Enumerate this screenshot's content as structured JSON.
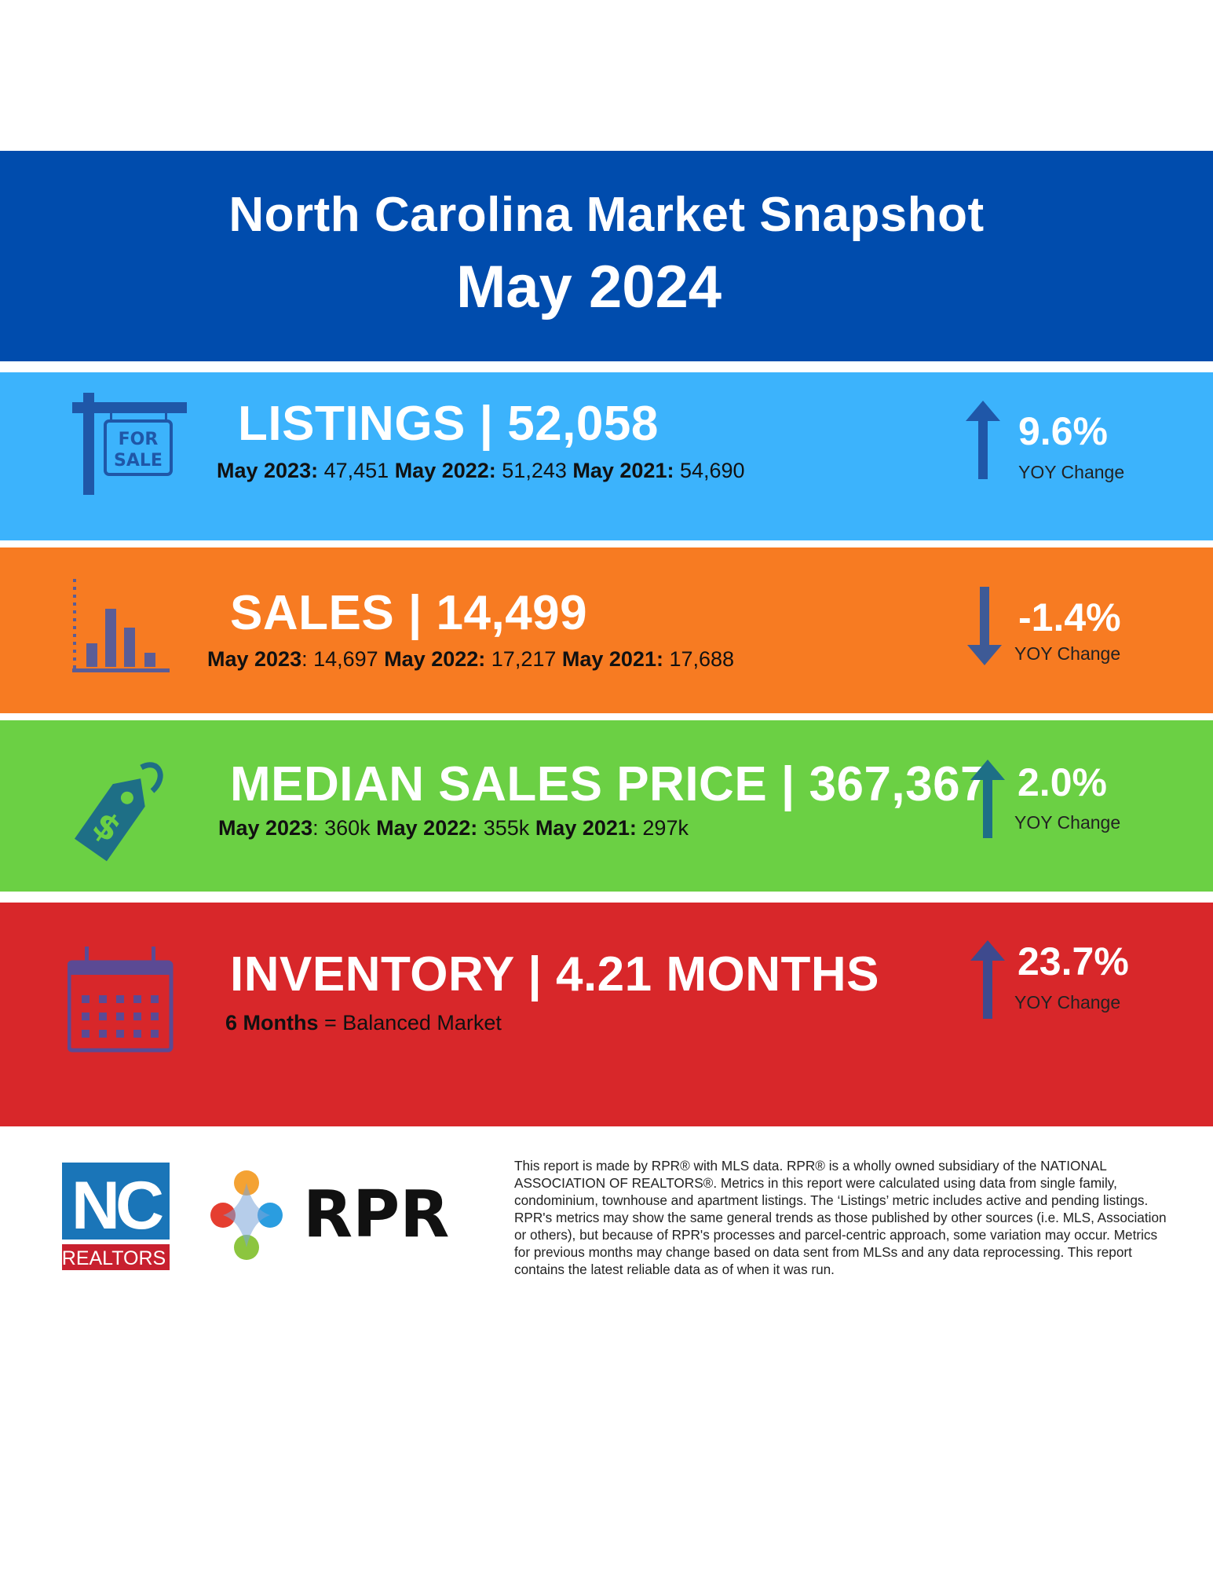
{
  "header": {
    "title": "North Carolina Market Snapshot",
    "subtitle": "May 2024"
  },
  "colors": {
    "header": "#004cad",
    "listings": "#3cb3fc",
    "sales": "#f77b22",
    "price": "#6bd044",
    "inventory": "#d8272a"
  },
  "listings": {
    "icon": "for-sale-sign-icon",
    "sign_line1": "FOR",
    "sign_line2": "SALE",
    "headline": "LISTINGS | 52,058",
    "history": [
      {
        "label": "May 2023:",
        "value": " 47,451 "
      },
      {
        "label": "May 2022:",
        "value": " 51,243  "
      },
      {
        "label": "May 2021:",
        "value": " 54,690"
      }
    ],
    "trend": "up",
    "yoy_pct": "9.6%",
    "yoy_label": "YOY Change"
  },
  "sales": {
    "icon": "bar-chart-icon",
    "headline": "SALES | 14,499",
    "history": [
      {
        "label": "May 2023",
        "value": ": 14,697 "
      },
      {
        "label": "May 2022:",
        "value": " 17,217  "
      },
      {
        "label": "May 2021:",
        "value": " 17,688"
      }
    ],
    "trend": "down",
    "yoy_pct": "-1.4%",
    "yoy_label": "YOY Change"
  },
  "price": {
    "icon": "price-tag-icon",
    "headline": "MEDIAN SALES PRICE | 367,367",
    "history": [
      {
        "label": "May 2023",
        "value": ": 360k "
      },
      {
        "label": "May 2022:",
        "value": " 355k  "
      },
      {
        "label": "May 2021:",
        "value": " 297k"
      }
    ],
    "trend": "up",
    "yoy_pct": "2.0%",
    "yoy_label": "YOY Change"
  },
  "inventory": {
    "icon": "calendar-icon",
    "headline": "INVENTORY | 4.21 MONTHS",
    "note_bold": "6 Months",
    "note_rest": " = Balanced Market",
    "trend": "up",
    "yoy_pct": "23.7%",
    "yoy_label": "YOY Change"
  },
  "footer": {
    "nc_logo_top": "NC",
    "nc_logo_bottom": "REALTORS",
    "rpr_logo": "RPR",
    "disclaimer": "This report is made by RPR® with MLS data. RPR® is a wholly owned subsidiary of the NATIONAL ASSOCIATION OF REALTORS®. Metrics in this report were calculated using data from single family, condominium, townhouse and apartment listings. The ‘Listings’ metric includes active and pending listings. RPR's metrics may show the same general trends as those published by other sources (i.e. MLS, Association or others), but because of RPR's processes and parcel-centric approach, some variation may occur. Metrics for previous months may change based on data sent from MLSs and any data reprocessing. This report contains the latest reliable data as of when it was run."
  }
}
